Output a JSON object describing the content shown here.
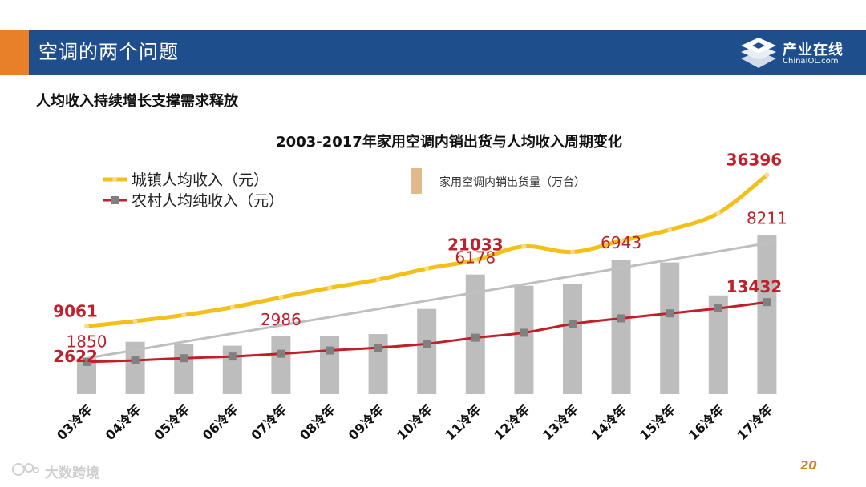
{
  "header": {
    "title": "空调的两个问题"
  },
  "logo": {
    "cn": "产业在线",
    "en": "ChinaIOL.com"
  },
  "subtitle": "人均收入持续增长支撑需求释放",
  "page_number": "20",
  "watermark": "大数跨境",
  "colors": {
    "urban": "#f2c018",
    "rural": "#c0202a",
    "bar": "#bdbdbd",
    "trend": "#bfbfbf",
    "label_red": "#c0202a",
    "header": "#1f4e8c",
    "accent": "#e8802a",
    "legend_bar": "#e2b98a"
  },
  "chart_data": {
    "type": "bar",
    "title": "2003-2017年家用空调内销出货与人均收入周期变化",
    "categories": [
      "03冷年",
      "04冷年",
      "05冷年",
      "06冷年",
      "07冷年",
      "08冷年",
      "09冷年",
      "10冷年",
      "11冷年",
      "12冷年",
      "13冷年",
      "14冷年",
      "15冷年",
      "16冷年",
      "17冷年"
    ],
    "series": [
      {
        "name": "城镇人均收入（元）",
        "type": "line",
        "values": [
          9061,
          10000,
          11100,
          12500,
          14300,
          16000,
          17500,
          19500,
          21033,
          23500,
          22500,
          24500,
          26500,
          29500,
          36396
        ]
      },
      {
        "name": "农村人均纯收入（元）",
        "type": "line",
        "values": [
          2622,
          2900,
          3300,
          3600,
          4100,
          4700,
          5200,
          5900,
          7000,
          7900,
          9500,
          10500,
          11400,
          12300,
          13432
        ]
      },
      {
        "name": "家用空调内销出货量（万台）",
        "type": "bar",
        "values": [
          1850,
          2700,
          2600,
          2500,
          2986,
          3000,
          3100,
          4400,
          6178,
          5600,
          5700,
          6943,
          6800,
          5100,
          8211
        ]
      }
    ],
    "labels": {
      "urban": [
        {
          "index": 0,
          "text": "9061"
        },
        {
          "index": 8,
          "text": "21033"
        },
        {
          "index": 14,
          "text": "36396"
        }
      ],
      "rural": [
        {
          "index": 0,
          "text": "2622"
        },
        {
          "index": 14,
          "text": "13432"
        }
      ],
      "bar": [
        {
          "index": 0,
          "text": "1850"
        },
        {
          "index": 4,
          "text": "2986"
        },
        {
          "index": 8,
          "text": "6178"
        },
        {
          "index": 11,
          "text": "6943"
        },
        {
          "index": 14,
          "text": "8211"
        }
      ]
    },
    "legend": [
      "城镇人均收入（元）",
      "农村人均纯收入（元）",
      "家用空调内销出货量（万台）"
    ],
    "legend_labels": [
      "城镇人均收入（元）",
      "农村人均纯收入（元）",
      "家用空调内销出货量（万台）"
    ],
    "bar_axis_range": [
      0,
      12000
    ],
    "income_axis_range": [
      0,
      55000
    ],
    "grid": false
  }
}
